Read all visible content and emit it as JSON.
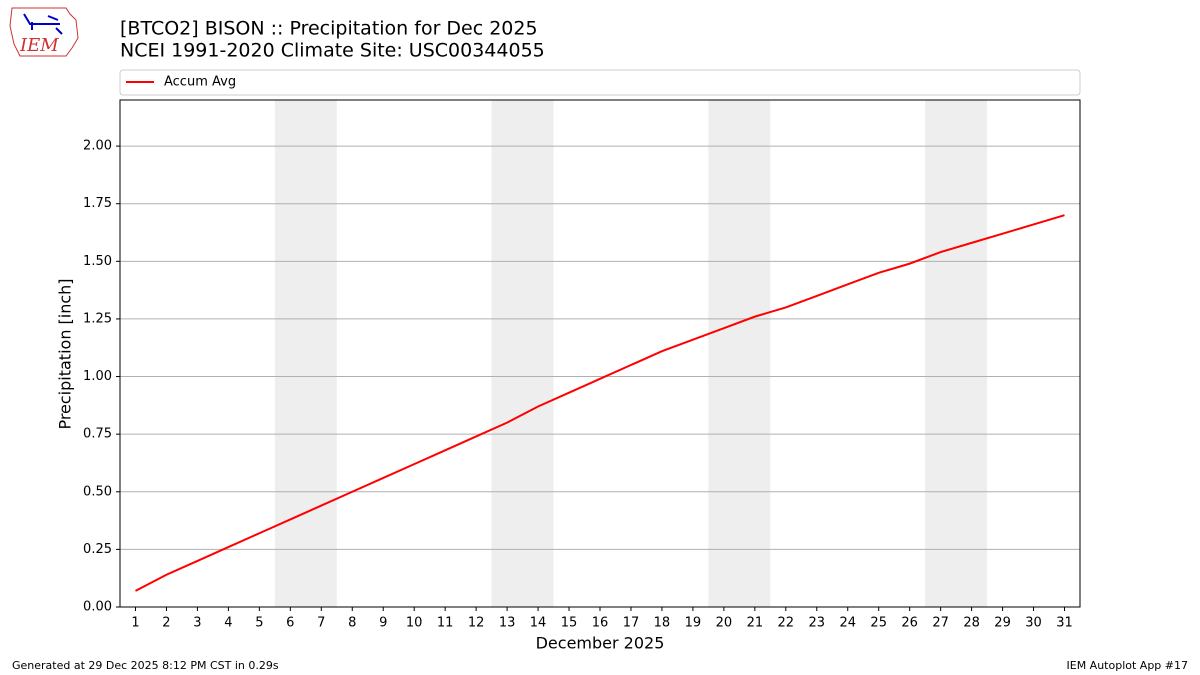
{
  "chart_data": {
    "type": "line",
    "title": "[BTCO2] BISON :: Precipitation for Dec 2025",
    "subtitle": "NCEI 1991-2020 Climate Site: USC00344055",
    "x_label": "December 2025",
    "y_label": "Precipitation [inch]",
    "x": [
      1,
      2,
      3,
      4,
      5,
      6,
      7,
      8,
      9,
      10,
      11,
      12,
      13,
      14,
      15,
      16,
      17,
      18,
      19,
      20,
      21,
      22,
      23,
      24,
      25,
      26,
      27,
      28,
      29,
      30,
      31
    ],
    "series": [
      {
        "name": "Accum Avg",
        "color": "#ff0000",
        "values": [
          0.07,
          0.14,
          0.2,
          0.26,
          0.32,
          0.38,
          0.44,
          0.5,
          0.56,
          0.62,
          0.68,
          0.74,
          0.8,
          0.87,
          0.93,
          0.99,
          1.05,
          1.11,
          1.16,
          1.21,
          1.26,
          1.3,
          1.35,
          1.4,
          1.45,
          1.49,
          1.54,
          1.58,
          1.62,
          1.66,
          1.7
        ]
      }
    ],
    "xlim": [
      0.5,
      31.5
    ],
    "xticks": [
      1,
      2,
      3,
      4,
      5,
      6,
      7,
      8,
      9,
      10,
      11,
      12,
      13,
      14,
      15,
      16,
      17,
      18,
      19,
      20,
      21,
      22,
      23,
      24,
      25,
      26,
      27,
      28,
      29,
      30,
      31
    ],
    "ylim": [
      0,
      2.2
    ],
    "yticks": [
      {
        "value": 0,
        "label": "0.00"
      },
      {
        "value": 0.25,
        "label": "0.25"
      },
      {
        "value": 0.5,
        "label": "0.50"
      },
      {
        "value": 0.75,
        "label": "0.75"
      },
      {
        "value": 1,
        "label": "1.00"
      },
      {
        "value": 1.25,
        "label": "1.25"
      },
      {
        "value": 1.5,
        "label": "1.50"
      },
      {
        "value": 1.75,
        "label": "1.75"
      },
      {
        "value": 2,
        "label": "2.00"
      }
    ],
    "grid": true,
    "legend": "top",
    "shaded_spans": [
      [
        5.5,
        7.5
      ],
      [
        12.5,
        14.5
      ],
      [
        19.5,
        21.5
      ],
      [
        26.5,
        28.5
      ]
    ],
    "shade_color": "#eeeeee"
  },
  "logo": "IEM",
  "footer": {
    "left": "Generated at 29 Dec 2025 8:12 PM CST in 0.29s",
    "right": "IEM Autoplot App #17"
  }
}
